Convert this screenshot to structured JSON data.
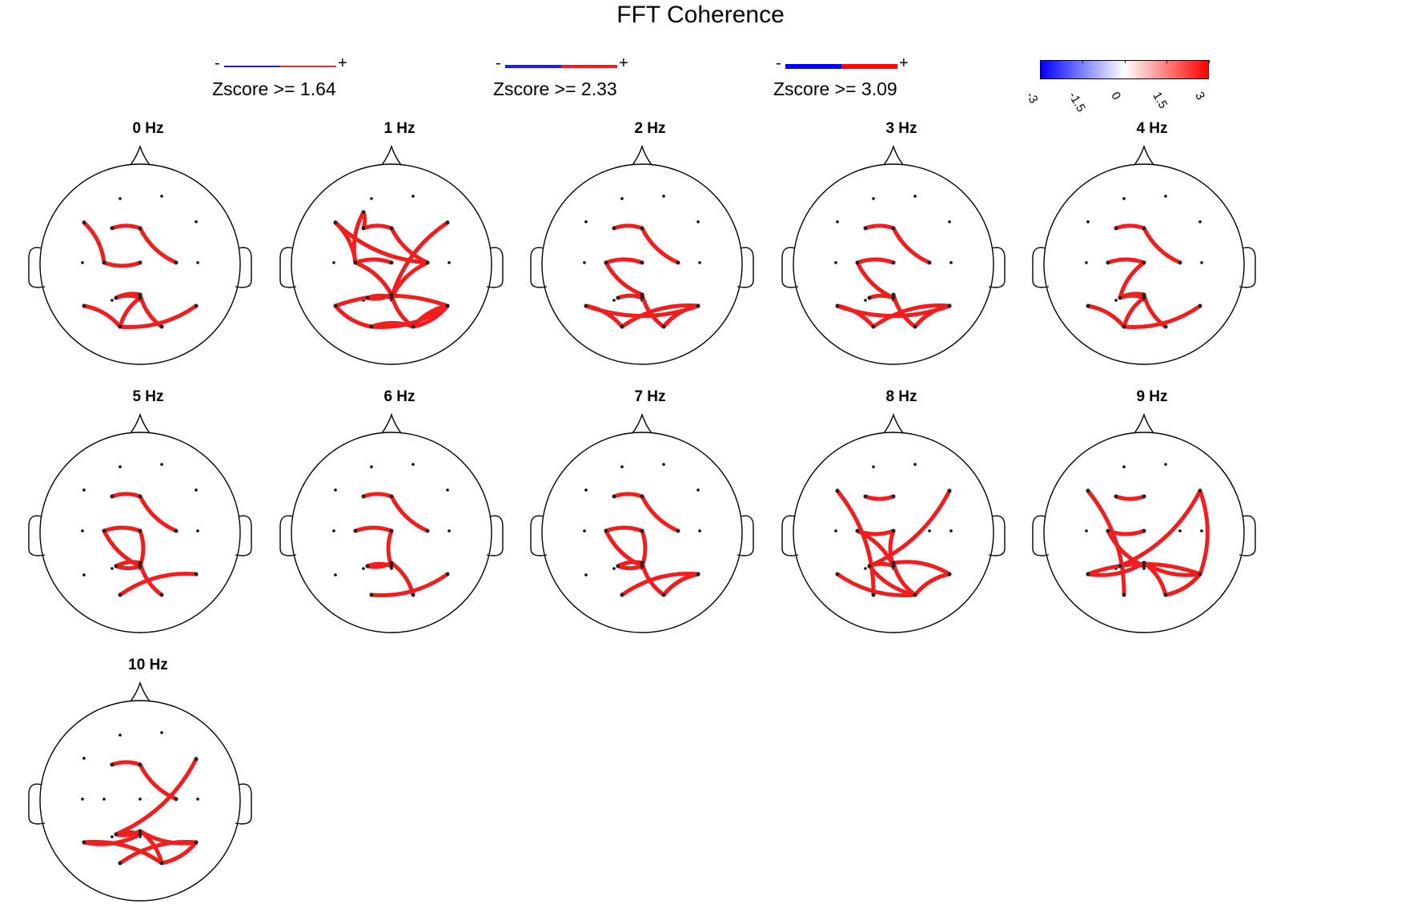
{
  "title": "FFT Coherence",
  "legend": [
    {
      "minus": "-",
      "plus": "+",
      "label": "Zscore >= 1.64",
      "colors": [
        "#1f1fc4",
        "#e03030"
      ],
      "weight": "thin"
    },
    {
      "minus": "-",
      "plus": "+",
      "label": "Zscore >= 2.33",
      "colors": [
        "#1f1fe0",
        "#f01f1f"
      ],
      "weight": "medium"
    },
    {
      "minus": "-",
      "plus": "+",
      "label": "Zscore >= 3.09",
      "colors": [
        "#0000ff",
        "#ff0000"
      ],
      "weight": "thick"
    }
  ],
  "colorbar": {
    "ticks": [
      "-3",
      "-1.5",
      "0",
      "1.5",
      "3"
    ],
    "range": [
      -3,
      3
    ],
    "colors": [
      "#0000ff",
      "#ffffff",
      "#ff0000"
    ]
  },
  "line_color": "#f01e1e",
  "panels": [
    {
      "label": "0 Hz",
      "edges": [
        [
          3,
          4
        ],
        [
          4,
          7
        ],
        [
          2,
          6
        ],
        [
          6,
          8
        ],
        [
          10,
          11
        ],
        [
          11,
          13
        ],
        [
          10,
          14
        ],
        [
          14,
          15
        ],
        [
          9,
          13
        ],
        [
          13,
          16
        ]
      ]
    },
    {
      "label": "1 Hz",
      "edges": [
        [
          1,
          3
        ],
        [
          1,
          6
        ],
        [
          3,
          4
        ],
        [
          4,
          7
        ],
        [
          2,
          6
        ],
        [
          2,
          7
        ],
        [
          6,
          8
        ],
        [
          7,
          11
        ],
        [
          10,
          11
        ],
        [
          10,
          14
        ],
        [
          11,
          14
        ],
        [
          14,
          15
        ],
        [
          9,
          12
        ],
        [
          9,
          13
        ],
        [
          12,
          15
        ],
        [
          12,
          16
        ],
        [
          13,
          15
        ],
        [
          13,
          16
        ],
        [
          15,
          16
        ],
        [
          5,
          11
        ],
        [
          6,
          14
        ]
      ]
    },
    {
      "label": "2 Hz",
      "edges": [
        [
          3,
          4
        ],
        [
          4,
          7
        ],
        [
          6,
          8
        ],
        [
          6,
          14
        ],
        [
          10,
          11
        ],
        [
          11,
          14
        ],
        [
          9,
          13
        ],
        [
          12,
          15
        ],
        [
          13,
          16
        ],
        [
          14,
          15
        ],
        [
          15,
          16
        ],
        [
          9,
          12
        ]
      ]
    },
    {
      "label": "3 Hz",
      "edges": [
        [
          3,
          4
        ],
        [
          4,
          7
        ],
        [
          6,
          8
        ],
        [
          6,
          11
        ],
        [
          10,
          11
        ],
        [
          11,
          14
        ],
        [
          9,
          13
        ],
        [
          12,
          15
        ],
        [
          13,
          16
        ],
        [
          14,
          15
        ],
        [
          15,
          16
        ],
        [
          9,
          16
        ]
      ]
    },
    {
      "label": "4 Hz",
      "edges": [
        [
          3,
          4
        ],
        [
          4,
          7
        ],
        [
          6,
          8
        ],
        [
          8,
          10
        ],
        [
          10,
          11
        ],
        [
          11,
          13
        ],
        [
          10,
          14
        ],
        [
          14,
          15
        ],
        [
          9,
          13
        ],
        [
          13,
          16
        ]
      ]
    },
    {
      "label": "5 Hz",
      "edges": [
        [
          3,
          4
        ],
        [
          4,
          7
        ],
        [
          6,
          8
        ],
        [
          6,
          11
        ],
        [
          8,
          11
        ],
        [
          10,
          11
        ],
        [
          10,
          14
        ],
        [
          14,
          15
        ],
        [
          13,
          16
        ]
      ]
    },
    {
      "label": "6 Hz",
      "edges": [
        [
          3,
          4
        ],
        [
          4,
          7
        ],
        [
          6,
          8
        ],
        [
          8,
          11
        ],
        [
          10,
          11
        ],
        [
          10,
          14
        ],
        [
          14,
          15
        ],
        [
          13,
          16
        ]
      ]
    },
    {
      "label": "7 Hz",
      "edges": [
        [
          3,
          4
        ],
        [
          4,
          7
        ],
        [
          6,
          8
        ],
        [
          6,
          11
        ],
        [
          8,
          11
        ],
        [
          10,
          11
        ],
        [
          10,
          14
        ],
        [
          14,
          15
        ],
        [
          13,
          16
        ],
        [
          12,
          15
        ],
        [
          15,
          16
        ]
      ]
    },
    {
      "label": "8 Hz",
      "edges": [
        [
          2,
          13
        ],
        [
          3,
          4
        ],
        [
          5,
          10
        ],
        [
          6,
          8
        ],
        [
          6,
          11
        ],
        [
          8,
          11
        ],
        [
          10,
          11
        ],
        [
          10,
          15
        ],
        [
          11,
          14
        ],
        [
          14,
          15
        ],
        [
          14,
          16
        ],
        [
          9,
          15
        ],
        [
          15,
          16
        ]
      ]
    },
    {
      "label": "9 Hz",
      "edges": [
        [
          2,
          13
        ],
        [
          3,
          4
        ],
        [
          5,
          10
        ],
        [
          6,
          8
        ],
        [
          5,
          12
        ],
        [
          6,
          11
        ],
        [
          10,
          11
        ],
        [
          9,
          14
        ],
        [
          14,
          15
        ],
        [
          14,
          16
        ],
        [
          9,
          16
        ],
        [
          15,
          16
        ],
        [
          12,
          16
        ]
      ]
    },
    {
      "label": "10 Hz",
      "edges": [
        [
          3,
          4
        ],
        [
          4,
          7
        ],
        [
          5,
          10
        ],
        [
          9,
          11
        ],
        [
          10,
          11
        ],
        [
          10,
          14
        ],
        [
          14,
          15
        ],
        [
          14,
          16
        ],
        [
          13,
          16
        ],
        [
          15,
          16
        ],
        [
          9,
          15
        ]
      ]
    }
  ]
}
